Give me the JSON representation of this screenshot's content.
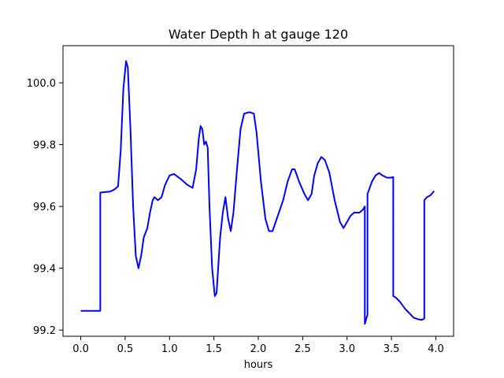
{
  "chart_data": {
    "type": "line",
    "title": "Water Depth h at gauge 120",
    "xlabel": "hours",
    "ylabel": "",
    "xlim": [
      -0.2,
      4.2
    ],
    "ylim": [
      99.18,
      100.12
    ],
    "xticks": [
      0.0,
      0.5,
      1.0,
      1.5,
      2.0,
      2.5,
      3.0,
      3.5,
      4.0
    ],
    "xtick_labels": [
      "0.0",
      "0.5",
      "1.0",
      "1.5",
      "2.0",
      "2.5",
      "3.0",
      "3.5",
      "4.0"
    ],
    "yticks": [
      99.2,
      99.4,
      99.6,
      99.8,
      100.0
    ],
    "ytick_labels": [
      "99.2",
      "99.4",
      "99.6",
      "99.8",
      "100.0"
    ],
    "grid": false,
    "series": [
      {
        "color": "#0000ff",
        "points": [
          [
            0.0,
            99.262
          ],
          [
            0.22,
            99.262
          ],
          [
            0.22,
            99.645
          ],
          [
            0.33,
            99.648
          ],
          [
            0.38,
            99.655
          ],
          [
            0.42,
            99.665
          ],
          [
            0.45,
            99.78
          ],
          [
            0.48,
            99.98
          ],
          [
            0.51,
            100.07
          ],
          [
            0.53,
            100.05
          ],
          [
            0.56,
            99.85
          ],
          [
            0.59,
            99.6
          ],
          [
            0.62,
            99.44
          ],
          [
            0.65,
            99.4
          ],
          [
            0.68,
            99.44
          ],
          [
            0.71,
            99.5
          ],
          [
            0.75,
            99.53
          ],
          [
            0.78,
            99.58
          ],
          [
            0.81,
            99.62
          ],
          [
            0.83,
            99.63
          ],
          [
            0.87,
            99.62
          ],
          [
            0.91,
            99.63
          ],
          [
            0.95,
            99.67
          ],
          [
            1.0,
            99.7
          ],
          [
            1.05,
            99.705
          ],
          [
            1.12,
            99.69
          ],
          [
            1.2,
            99.67
          ],
          [
            1.26,
            99.66
          ],
          [
            1.3,
            99.72
          ],
          [
            1.33,
            99.82
          ],
          [
            1.35,
            99.86
          ],
          [
            1.37,
            99.85
          ],
          [
            1.39,
            99.8
          ],
          [
            1.41,
            99.81
          ],
          [
            1.43,
            99.79
          ],
          [
            1.45,
            99.6
          ],
          [
            1.48,
            99.4
          ],
          [
            1.51,
            99.31
          ],
          [
            1.53,
            99.32
          ],
          [
            1.57,
            99.5
          ],
          [
            1.6,
            99.58
          ],
          [
            1.63,
            99.63
          ],
          [
            1.66,
            99.56
          ],
          [
            1.69,
            99.52
          ],
          [
            1.72,
            99.58
          ],
          [
            1.76,
            99.72
          ],
          [
            1.8,
            99.85
          ],
          [
            1.84,
            99.9
          ],
          [
            1.9,
            99.905
          ],
          [
            1.95,
            99.9
          ],
          [
            1.98,
            99.84
          ],
          [
            2.03,
            99.68
          ],
          [
            2.08,
            99.56
          ],
          [
            2.12,
            99.52
          ],
          [
            2.16,
            99.52
          ],
          [
            2.22,
            99.57
          ],
          [
            2.28,
            99.62
          ],
          [
            2.33,
            99.68
          ],
          [
            2.38,
            99.72
          ],
          [
            2.41,
            99.72
          ],
          [
            2.46,
            99.68
          ],
          [
            2.52,
            99.64
          ],
          [
            2.56,
            99.62
          ],
          [
            2.6,
            99.64
          ],
          [
            2.63,
            99.7
          ],
          [
            2.67,
            99.74
          ],
          [
            2.71,
            99.76
          ],
          [
            2.75,
            99.75
          ],
          [
            2.8,
            99.71
          ],
          [
            2.86,
            99.62
          ],
          [
            2.92,
            99.55
          ],
          [
            2.96,
            99.53
          ],
          [
            3.0,
            99.55
          ],
          [
            3.04,
            99.57
          ],
          [
            3.08,
            99.58
          ],
          [
            3.14,
            99.58
          ],
          [
            3.18,
            99.59
          ],
          [
            3.2,
            99.6
          ],
          [
            3.2,
            99.22
          ],
          [
            3.23,
            99.25
          ],
          [
            3.23,
            99.64
          ],
          [
            3.28,
            99.68
          ],
          [
            3.32,
            99.7
          ],
          [
            3.36,
            99.708
          ],
          [
            3.4,
            99.7
          ],
          [
            3.45,
            99.693
          ],
          [
            3.49,
            99.693
          ],
          [
            3.52,
            99.695
          ],
          [
            3.52,
            99.31
          ],
          [
            3.55,
            99.305
          ],
          [
            3.6,
            99.29
          ],
          [
            3.65,
            99.27
          ],
          [
            3.7,
            99.255
          ],
          [
            3.75,
            99.24
          ],
          [
            3.8,
            99.235
          ],
          [
            3.84,
            99.233
          ],
          [
            3.87,
            99.237
          ],
          [
            3.87,
            99.62
          ],
          [
            3.9,
            99.63
          ],
          [
            3.94,
            99.636
          ],
          [
            3.98,
            99.65
          ]
        ]
      }
    ]
  }
}
